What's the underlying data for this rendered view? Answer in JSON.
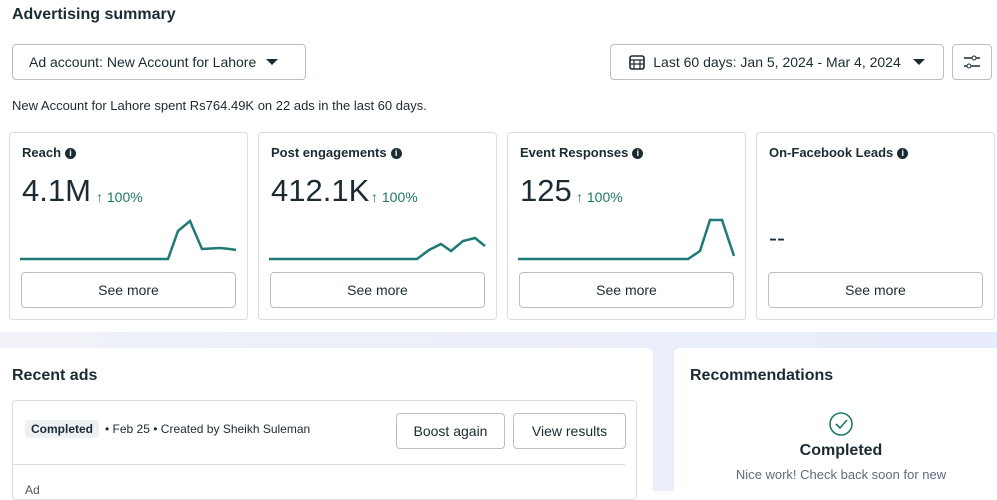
{
  "header": {
    "title": "Advertising summary",
    "account_button": "Ad account: New Account for Lahore",
    "date_button": "Last 60 days: Jan 5, 2024 - Mar 4, 2024"
  },
  "summary": "New Account for Lahore spent Rs764.49K on 22 ads in the last 60 days.",
  "cards": [
    {
      "title": "Reach",
      "value": "4.1M",
      "change": "100%",
      "button": "See more"
    },
    {
      "title": "Post engagements",
      "value": "412.1K",
      "change": "100%",
      "button": "See more"
    },
    {
      "title": "Event Responses",
      "value": "125",
      "change": "100%",
      "button": "See more"
    },
    {
      "title": "On-Facebook Leads",
      "value": "--",
      "button": "See more"
    }
  ],
  "recent_ads": {
    "title": "Recent ads",
    "status": "Completed",
    "date": "Feb 25",
    "creator": "Created by Sheikh Suleman",
    "boost_button": "Boost again",
    "results_button": "View results",
    "column": "Ad"
  },
  "recommendations": {
    "title": "Recommendations",
    "status": "Completed",
    "message": "Nice work! Check back soon for new"
  }
}
